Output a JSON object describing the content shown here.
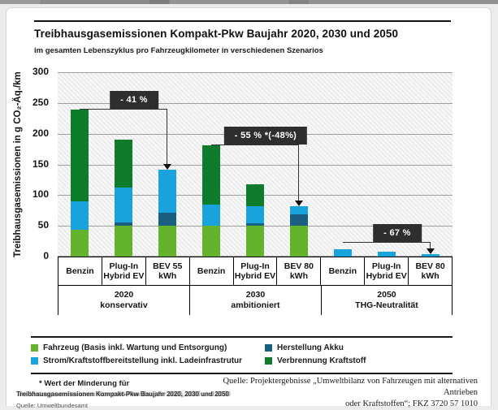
{
  "page": {
    "title": "Treibhausgasemissionen Kompakt-Pkw Baujahr 2020, 2030 und 2050",
    "subtitle": "im gesamten Lebenszyklus pro Fahrzeugkilometer in verschiedenen Szenarios"
  },
  "chart_data": {
    "type": "bar",
    "stacked": true,
    "title": "Treibhausgasemissionen Kompakt-Pkw Baujahr 2020, 2030 und 2050",
    "subtitle": "im gesamten Lebenszyklus pro Fahrzeugkilometer in verschiedenen Szenarios",
    "ylabel": "Treibhausgasemissionen in g CO₂-Äq./km",
    "xlabel": "",
    "ylim": [
      0,
      300
    ],
    "yticks": [
      0,
      50,
      100,
      150,
      200,
      250,
      300
    ],
    "grid": true,
    "legend_position": "bottom",
    "categories": [
      "Benzin",
      "Plug-In Hybrid EV",
      "BEV 55 kWh",
      "Benzin",
      "Plug-In Hybrid EV",
      "BEV 80 kWh",
      "Benzin",
      "Plug-In Hybrid EV",
      "BEV 80 kWh"
    ],
    "categories_lines": [
      [
        "Benzin"
      ],
      [
        "Plug-In",
        "Hybrid EV"
      ],
      [
        "BEV 55",
        "kWh"
      ],
      [
        "Benzin"
      ],
      [
        "Plug-In",
        "Hybrid EV"
      ],
      [
        "BEV 80",
        "kWh"
      ],
      [
        "Benzin"
      ],
      [
        "Plug-In",
        "Hybrid EV"
      ],
      [
        "BEV 80",
        "kWh"
      ]
    ],
    "groups": [
      {
        "label": "2020",
        "sublabel": "konservativ",
        "span": 3
      },
      {
        "label": "2030",
        "sublabel": "ambitioniert",
        "span": 3
      },
      {
        "label": "2050",
        "sublabel": "THG-Neutralität",
        "span": 3
      }
    ],
    "series": [
      {
        "name": "Fahrzeug (Basis inkl. Wartung und Entsorgung)",
        "color": "#64b32c",
        "values": [
          44,
          50,
          50,
          50,
          50,
          50,
          0,
          0,
          0
        ]
      },
      {
        "name": "Herstellung Akku",
        "color": "#1a5f7f",
        "values": [
          0,
          5,
          22,
          0,
          4,
          19,
          0,
          0,
          0
        ]
      },
      {
        "name": "Strom/Kraftstoffbereitstellung inkl. Ladeinfrastrutur",
        "color": "#18a3dc",
        "values": [
          46,
          57,
          69,
          35,
          28,
          13,
          12,
          8,
          4
        ]
      },
      {
        "name": "Verbrennung Kraftstoff",
        "color": "#0e7c2b",
        "values": [
          149,
          79,
          0,
          96,
          36,
          0,
          0,
          0,
          0
        ]
      }
    ],
    "totals": [
      239,
      191,
      141,
      181,
      118,
      82,
      12,
      8,
      4
    ],
    "annotations": [
      {
        "text": "- 41 %",
        "from_bar": 0,
        "to_bar": 2,
        "line_value": 239
      },
      {
        "text": "- 55 % *(-48%)",
        "from_bar": 3,
        "to_bar": 5,
        "line_value": 181
      },
      {
        "text": "- 67 %",
        "from_bar": 6,
        "to_bar": 8,
        "line_value": 22
      }
    ]
  },
  "footer": {
    "footnote": "* Wert der Minderung für",
    "caption_overlay": "Treibhausgasemissionen Kompakt-Pkw Baujahr 2020, 2030 und 2050",
    "source_left": "Quelle: Umweltbundesamt",
    "source_right_line1": "Quelle: Projektergebnisse „Umweltbilanz von Fahrzeugen mit alternativen Antrieben",
    "source_right_line2": "oder Kraftstoffen“; FKZ 3720 57 1010"
  }
}
